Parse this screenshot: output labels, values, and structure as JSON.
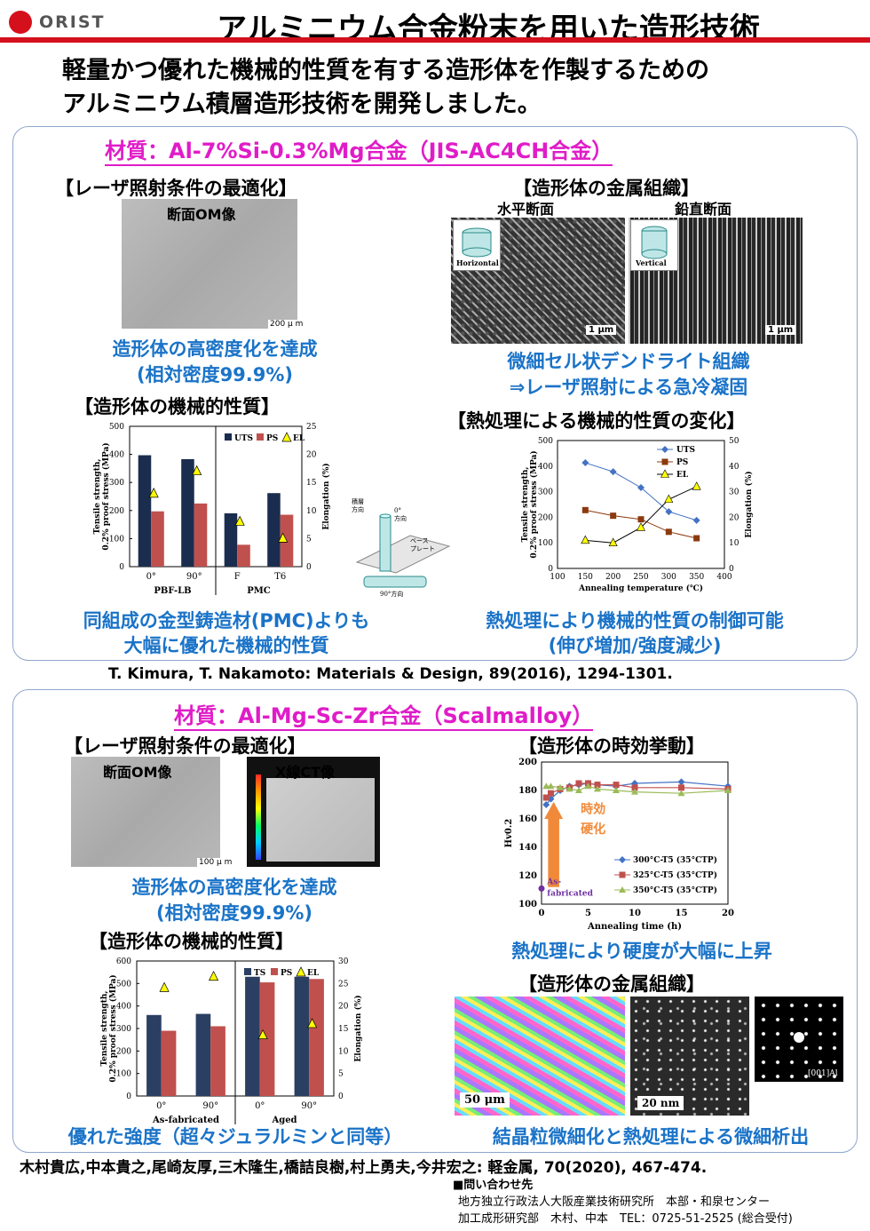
{
  "header": {
    "logo": "ORIST",
    "title": "アルミニウム合金粉末を用いた造形技術"
  },
  "lead": {
    "line1": "軽量かつ優れた機械的性質を有する造形体を作製するための",
    "line2": "アルミニウム積層造形技術を開発しました。"
  },
  "panel1": {
    "material": "材質：Al-7%Si-0.3%Mg合金（JIS-AC4CH合金）",
    "laser_title": "【レーザ照射条件の最適化】",
    "om_label": "断面OM像",
    "om_scale": "200 μ m",
    "density1": "造形体の高密度化を達成",
    "density2": "(相対密度99.9%)",
    "micro_title": "【造形体の金属組織】",
    "horiz_label": "水平断面",
    "vert_label": "鉛直断面",
    "inset_h": "Horizontal",
    "inset_v": "Vertical",
    "scale_1um": "1 μm",
    "micro_desc1": "微細セル状デンドライト組織",
    "micro_desc2": "⇒レーザ照射による急冷凝固",
    "mech_title": "【造形体の機械的性質】",
    "heat_title": "【熱処理による機械的性質の変化】",
    "mech_desc1": "同組成の金型鋳造材(PMC)よりも",
    "mech_desc2": "大幅に優れた機械的性質",
    "heat_desc1": "熱処理により機械的性質の制御可能",
    "heat_desc2": "(伸び増加/強度減少)",
    "schem": {
      "build": "積層",
      "build2": "方向",
      "zero": "0°",
      "zero2": "方向",
      "base": "ベース",
      "base2": "プレート",
      "ninety": "90°方向"
    }
  },
  "ref1": "T. Kimura, T. Nakamoto: Materials & Design, 89(2016), 1294-1301.",
  "panel2": {
    "material": "材質：Al-Mg-Sc-Zr合金（Scalmalloy）",
    "laser_title": "【レーザ照射条件の最適化】",
    "om_label": "断面OM像",
    "ct_label": "X線CT像",
    "om_scale": "100 μ m",
    "density1": "造形体の高密度化を達成",
    "density2": "(相対密度99.9%)",
    "aging_title": "【造形体の時効挙動】",
    "aging_desc": "熱処理により硬度が大幅に上昇",
    "mech_title": "【造形体の機械的性質】",
    "micro_title": "【造形体の金属組織】",
    "strength_desc": "優れた強度（超々ジュラルミンと同等）",
    "micro_desc": "結晶粒微細化と熱処理による微細析出",
    "scale_50": "50 μm",
    "scale_20": "20 nm",
    "saed": "[001]Al",
    "age_hard": "時効",
    "age_hard2": "硬化",
    "asfab": "As-",
    "asfab2": "fabricated"
  },
  "ref2": "木村貴広,中本貴之,尾崎友厚,三木隆生,橋詰良樹,村上勇夫,今井宏之: 軽金属, 70(2020), 467-474.",
  "contact": {
    "head": "■問い合わせ先",
    "line1": "地方独立行政法人大阪産業技術研究所　本部・和泉センター",
    "line2": "加工成形研究部　木村、中本　TEL：0725-51-2525 (総合受付)"
  },
  "chart_data": [
    {
      "type": "bar",
      "title": "",
      "categories": [
        "0°",
        "90°",
        "F",
        "T6"
      ],
      "groups": [
        "PBF-LB",
        "PMC"
      ],
      "ylabel": "Tensile strength, 0.2% proof stress (MPa)",
      "y2label": "Elongation (%)",
      "ylim": [
        0,
        500
      ],
      "y2lim": [
        0,
        25
      ],
      "series": [
        {
          "name": "UTS",
          "values": [
            397,
            383,
            190,
            262
          ],
          "color": "#1b2d4f"
        },
        {
          "name": "PS",
          "values": [
            197,
            225,
            78,
            185
          ],
          "color": "#c0504d"
        },
        {
          "name": "EL",
          "values": [
            13,
            17,
            8,
            5
          ],
          "axis": "right",
          "marker": "triangle",
          "color": "#ffff00"
        }
      ]
    },
    {
      "type": "line",
      "title": "",
      "xlabel": "Annealing temperature (℃)",
      "ylabel": "Tensile strength, 0.2% proof stress (MPa)",
      "y2label": "Elongation (%)",
      "x": [
        150,
        200,
        250,
        300,
        350
      ],
      "xlim": [
        100,
        400
      ],
      "ylim": [
        0,
        500
      ],
      "y2lim": [
        0,
        50
      ],
      "series": [
        {
          "name": "UTS",
          "values": [
            413,
            378,
            316,
            222,
            188
          ],
          "color": "#4472c4",
          "marker": "diamond"
        },
        {
          "name": "PS",
          "values": [
            228,
            206,
            192,
            143,
            118
          ],
          "color": "#8b3a0e",
          "marker": "square"
        },
        {
          "name": "EL",
          "values": [
            11,
            10,
            16,
            27,
            32
          ],
          "axis": "right",
          "color": "#000",
          "marker": "triangle"
        }
      ]
    },
    {
      "type": "line",
      "title": "",
      "xlabel": "Annealing time (h)",
      "ylabel": "Hv0.2",
      "x": [
        0,
        0.5,
        1,
        2,
        3,
        4,
        5,
        6,
        8,
        10,
        15,
        20
      ],
      "xlim": [
        0,
        20
      ],
      "ylim": [
        100,
        200
      ],
      "series": [
        {
          "name": "300°C-T5 (35°CTP)",
          "values": [
            111,
            170,
            174,
            180,
            183,
            184,
            185,
            184,
            183,
            185,
            186,
            183
          ],
          "color": "#4472c4"
        },
        {
          "name": "325°C-T5 (35°CTP)",
          "values": [
            111,
            175,
            178,
            181,
            182,
            185,
            185,
            184,
            184,
            182,
            182,
            181
          ],
          "color": "#c0504d"
        },
        {
          "name": "350°C-T5 (35°CTP)",
          "values": [
            111,
            183,
            183,
            182,
            181,
            180,
            183,
            181,
            180,
            179,
            178,
            180
          ],
          "color": "#9bbb59"
        }
      ]
    },
    {
      "type": "bar",
      "title": "",
      "categories": [
        "0°",
        "90°",
        "0°",
        "90°"
      ],
      "groups": [
        "As-fabricated",
        "Aged"
      ],
      "ylabel": "Tensile strength, 0.2% proof stress (MPa)",
      "y2label": "Elongation (%)",
      "ylim": [
        0,
        600
      ],
      "y2lim": [
        0,
        30
      ],
      "series": [
        {
          "name": "TS",
          "values": [
            360,
            365,
            530,
            530
          ],
          "color": "#2b3f63"
        },
        {
          "name": "PS",
          "values": [
            290,
            310,
            505,
            520
          ],
          "color": "#c0504d"
        },
        {
          "name": "EL",
          "values": [
            24,
            26.5,
            13.5,
            16
          ],
          "axis": "right",
          "marker": "triangle",
          "color": "#ffff00"
        }
      ]
    }
  ]
}
